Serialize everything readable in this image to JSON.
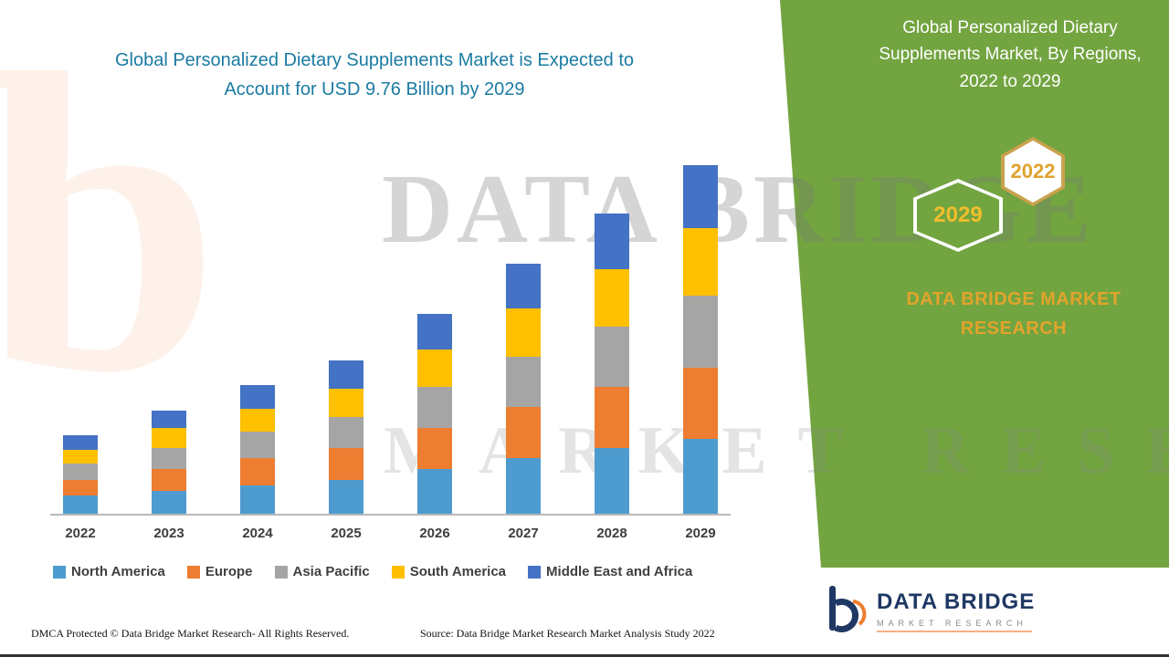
{
  "title": {
    "line1": "Global Personalized Dietary Supplements Market is Expected to",
    "line2": "Account for USD 9.76 Billion by 2029"
  },
  "right_panel": {
    "heading": "Global Personalized Dietary Supplements Market, By Regions, 2022 to 2029",
    "hexagon_back": "2022",
    "hexagon_front": "2029",
    "brand": "DATA BRIDGE MARKET RESEARCH",
    "bg_color": "#72A440",
    "accent_color": "#E2A42B"
  },
  "watermark": {
    "letter": "b",
    "line1": "DATA BRIDGE",
    "line2": "MARKET RESEARCH"
  },
  "chart_data": {
    "type": "bar",
    "stacked": true,
    "title": "Global Personalized Dietary Supplements Market is Expected to Account for USD 9.76 Billion by 2029",
    "unit": "USD Billion",
    "categories": [
      "2022",
      "2023",
      "2024",
      "2025",
      "2026",
      "2027",
      "2028",
      "2029"
    ],
    "series": [
      {
        "name": "North America",
        "color": "#4E9BCF",
        "values": [
          0.5,
          0.65,
          0.8,
          0.95,
          1.25,
          1.55,
          1.85,
          2.1
        ]
      },
      {
        "name": "Europe",
        "color": "#ED7D31",
        "values": [
          0.45,
          0.6,
          0.75,
          0.9,
          1.15,
          1.45,
          1.7,
          2.0
        ]
      },
      {
        "name": "Asia Pacific",
        "color": "#A5A5A5",
        "values": [
          0.45,
          0.6,
          0.75,
          0.85,
          1.15,
          1.4,
          1.7,
          2.0
        ]
      },
      {
        "name": "South America",
        "color": "#FFC000",
        "values": [
          0.4,
          0.55,
          0.65,
          0.8,
          1.05,
          1.35,
          1.6,
          1.9
        ]
      },
      {
        "name": "Middle East and Africa",
        "color": "#4472C4",
        "values": [
          0.4,
          0.5,
          0.65,
          0.8,
          1.0,
          1.25,
          1.55,
          1.76
        ]
      }
    ],
    "totals": [
      2.2,
      2.9,
      3.6,
      4.3,
      5.6,
      7.0,
      8.4,
      9.76
    ],
    "ylim": [
      0,
      10
    ],
    "y_axis_visible": false,
    "grid": false,
    "legend_position": "bottom"
  },
  "footer": {
    "left": "DMCA Protected © Data Bridge Market Research- All Rights Reserved.",
    "source": "Source: Data Bridge Market Research Market Analysis Study 2022"
  },
  "logo": {
    "title": "DATA BRIDGE",
    "subtitle": "MARKET RESEARCH"
  }
}
